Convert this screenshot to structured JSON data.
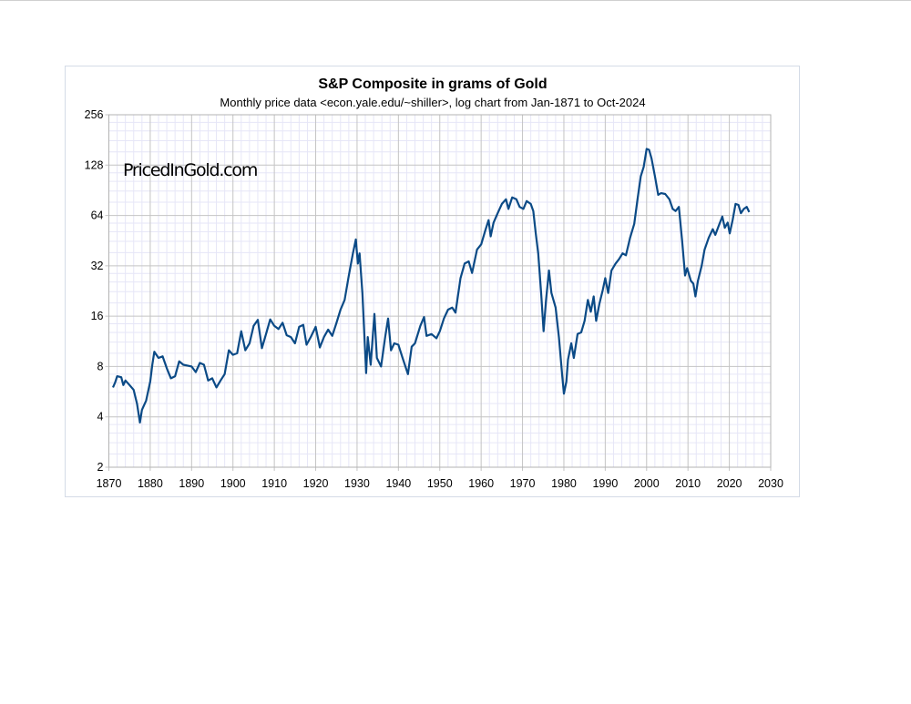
{
  "chart_data": {
    "type": "line",
    "title": "S&P Composite in grams of Gold",
    "subtitle": "Monthly price data <econ.yale.edu/~shiller>, log chart from Jan-1871 to Oct-2024",
    "watermark": "PricedInGold.com",
    "xlabel": "",
    "ylabel": "",
    "y_scale": "log2",
    "xlim": [
      1870,
      2030
    ],
    "ylim": [
      2,
      256
    ],
    "x_ticks": [
      1870,
      1880,
      1890,
      1900,
      1910,
      1920,
      1930,
      1940,
      1950,
      1960,
      1970,
      1980,
      1990,
      2000,
      2010,
      2020,
      2030
    ],
    "y_ticks": [
      2,
      4,
      8,
      16,
      32,
      64,
      128,
      256
    ],
    "grid": true,
    "line_color": "#0b4a86",
    "series": [
      {
        "name": "S&P Composite in grams of Gold",
        "points": [
          [
            1871,
            6.0
          ],
          [
            1871.5,
            6.4
          ],
          [
            1872,
            7.0
          ],
          [
            1873,
            6.9
          ],
          [
            1873.5,
            6.2
          ],
          [
            1874,
            6.6
          ],
          [
            1875,
            6.2
          ],
          [
            1876,
            5.8
          ],
          [
            1876.8,
            4.8
          ],
          [
            1877.5,
            3.7
          ],
          [
            1878,
            4.4
          ],
          [
            1879,
            5.0
          ],
          [
            1880,
            6.5
          ],
          [
            1880.5,
            8.2
          ],
          [
            1881,
            9.8
          ],
          [
            1882,
            9.0
          ],
          [
            1883,
            9.2
          ],
          [
            1884,
            7.8
          ],
          [
            1885,
            6.8
          ],
          [
            1886,
            7.0
          ],
          [
            1887,
            8.6
          ],
          [
            1888,
            8.2
          ],
          [
            1889,
            8.1
          ],
          [
            1890,
            8.0
          ],
          [
            1891,
            7.4
          ],
          [
            1892,
            8.4
          ],
          [
            1893,
            8.2
          ],
          [
            1894,
            6.6
          ],
          [
            1895,
            6.8
          ],
          [
            1896,
            6.0
          ],
          [
            1897,
            6.6
          ],
          [
            1898,
            7.2
          ],
          [
            1899,
            10.0
          ],
          [
            1900,
            9.4
          ],
          [
            1901,
            9.6
          ],
          [
            1902,
            13.0
          ],
          [
            1903,
            10.0
          ],
          [
            1904,
            11.0
          ],
          [
            1905,
            14.0
          ],
          [
            1906,
            15.2
          ],
          [
            1907,
            10.3
          ],
          [
            1908,
            12.5
          ],
          [
            1909,
            15.3
          ],
          [
            1910,
            14.0
          ],
          [
            1911,
            13.4
          ],
          [
            1912,
            14.6
          ],
          [
            1913,
            12.3
          ],
          [
            1914,
            12.0
          ],
          [
            1915,
            11.0
          ],
          [
            1916,
            13.8
          ],
          [
            1917,
            14.2
          ],
          [
            1917.8,
            10.8
          ],
          [
            1918.8,
            12.0
          ],
          [
            1920,
            13.8
          ],
          [
            1921,
            10.4
          ],
          [
            1922,
            12.0
          ],
          [
            1923,
            13.3
          ],
          [
            1924,
            12.2
          ],
          [
            1925,
            14.5
          ],
          [
            1926,
            17.5
          ],
          [
            1927,
            20.0
          ],
          [
            1928,
            28.0
          ],
          [
            1929,
            38.0
          ],
          [
            1929.7,
            46.0
          ],
          [
            1930.2,
            33.0
          ],
          [
            1930.6,
            38.0
          ],
          [
            1931.3,
            22.0
          ],
          [
            1932.2,
            7.3
          ],
          [
            1932.6,
            12.0
          ],
          [
            1933.3,
            8.2
          ],
          [
            1934.2,
            16.5
          ],
          [
            1934.8,
            9.0
          ],
          [
            1935.8,
            8.0
          ],
          [
            1936.8,
            12.0
          ],
          [
            1937.5,
            15.5
          ],
          [
            1938.2,
            10.0
          ],
          [
            1939,
            11.0
          ],
          [
            1940,
            10.8
          ],
          [
            1941,
            9.0
          ],
          [
            1942.3,
            7.2
          ],
          [
            1943.2,
            10.5
          ],
          [
            1944,
            11.0
          ],
          [
            1945.3,
            14.0
          ],
          [
            1946.2,
            15.8
          ],
          [
            1946.8,
            12.2
          ],
          [
            1948,
            12.5
          ],
          [
            1949.2,
            11.8
          ],
          [
            1950,
            13.0
          ],
          [
            1951,
            15.5
          ],
          [
            1952,
            17.5
          ],
          [
            1953,
            18.0
          ],
          [
            1953.8,
            16.8
          ],
          [
            1955,
            27.0
          ],
          [
            1956,
            33.0
          ],
          [
            1957,
            34.0
          ],
          [
            1957.8,
            29.0
          ],
          [
            1959,
            40.0
          ],
          [
            1960,
            43.0
          ],
          [
            1961,
            52.0
          ],
          [
            1961.8,
            60.0
          ],
          [
            1962.3,
            48.0
          ],
          [
            1963,
            58.0
          ],
          [
            1964,
            66.0
          ],
          [
            1965,
            75.0
          ],
          [
            1966,
            80.0
          ],
          [
            1966.6,
            70.0
          ],
          [
            1967.5,
            82.0
          ],
          [
            1968.5,
            80.0
          ],
          [
            1969.3,
            72.0
          ],
          [
            1970.2,
            70.0
          ],
          [
            1971,
            78.0
          ],
          [
            1972,
            75.0
          ],
          [
            1972.6,
            68.0
          ],
          [
            1973.2,
            50.0
          ],
          [
            1973.8,
            38.0
          ],
          [
            1974.5,
            22.0
          ],
          [
            1975.1,
            13.0
          ],
          [
            1975.7,
            20.0
          ],
          [
            1976.4,
            30.0
          ],
          [
            1977,
            22.0
          ],
          [
            1978,
            18.0
          ],
          [
            1978.8,
            12.0
          ],
          [
            1979.6,
            7.0
          ],
          [
            1980,
            5.5
          ],
          [
            1980.6,
            6.5
          ],
          [
            1981,
            8.8
          ],
          [
            1981.8,
            11.0
          ],
          [
            1982.4,
            9.0
          ],
          [
            1983.3,
            12.5
          ],
          [
            1984.2,
            12.8
          ],
          [
            1985,
            15.0
          ],
          [
            1985.8,
            20.0
          ],
          [
            1986.5,
            17.0
          ],
          [
            1987.2,
            21.0
          ],
          [
            1987.8,
            15.0
          ],
          [
            1988.6,
            19.0
          ],
          [
            1989.4,
            23.0
          ],
          [
            1990,
            27.0
          ],
          [
            1990.7,
            22.0
          ],
          [
            1991.5,
            30.0
          ],
          [
            1992.5,
            33.0
          ],
          [
            1993.3,
            35.0
          ],
          [
            1994.2,
            38.0
          ],
          [
            1995,
            37.0
          ],
          [
            1996,
            47.0
          ],
          [
            1997,
            57.0
          ],
          [
            1997.8,
            80.0
          ],
          [
            1998.6,
            110.0
          ],
          [
            1999.3,
            125.0
          ],
          [
            2000,
            160.0
          ],
          [
            2000.6,
            158.0
          ],
          [
            2001.2,
            140.0
          ],
          [
            2002,
            110.0
          ],
          [
            2002.8,
            85.0
          ],
          [
            2003.5,
            87.0
          ],
          [
            2004.5,
            86.0
          ],
          [
            2005.5,
            80.0
          ],
          [
            2006.3,
            70.0
          ],
          [
            2007,
            68.0
          ],
          [
            2007.8,
            72.0
          ],
          [
            2008.6,
            45.0
          ],
          [
            2009.3,
            28.0
          ],
          [
            2009.8,
            31.0
          ],
          [
            2010.7,
            26.0
          ],
          [
            2011.3,
            25.0
          ],
          [
            2011.8,
            21.0
          ],
          [
            2012.4,
            26.0
          ],
          [
            2013.3,
            32.0
          ],
          [
            2014,
            40.0
          ],
          [
            2015,
            47.0
          ],
          [
            2016,
            53.0
          ],
          [
            2016.6,
            49.0
          ],
          [
            2017.5,
            56.0
          ],
          [
            2018.3,
            63.0
          ],
          [
            2018.9,
            54.0
          ],
          [
            2019.6,
            58.0
          ],
          [
            2020.1,
            50.0
          ],
          [
            2020.8,
            60.0
          ],
          [
            2021.5,
            75.0
          ],
          [
            2022.2,
            74.0
          ],
          [
            2022.8,
            66.0
          ],
          [
            2023.5,
            70.0
          ],
          [
            2024.2,
            72.0
          ],
          [
            2024.8,
            67.0
          ]
        ]
      }
    ]
  }
}
